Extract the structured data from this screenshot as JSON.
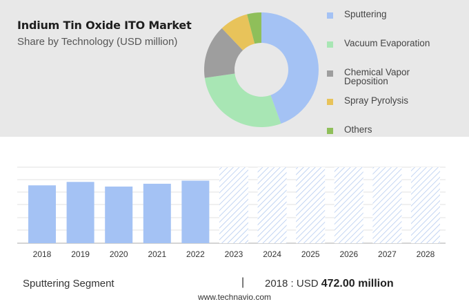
{
  "header": {
    "title": "Indium Tin Oxide ITO Market",
    "subtitle": "Share by Technology (USD million)"
  },
  "colors": {
    "sputtering": "#a4c2f4",
    "vacuum_evaporation": "#a8e6b4",
    "chemical_vapor_deposition": "#9e9e9e",
    "spray_pyrolysis": "#e8c35a",
    "others": "#8fbf5a",
    "bar": "#a4c2f4",
    "forecast_hatch": "#aac4ee"
  },
  "chart_data": [
    {
      "type": "pie",
      "variant": "donut",
      "labels": [
        "Sputtering",
        "Vacuum Evaporation",
        "Chemical Vapor Deposition",
        "Spray Pyrolysis",
        "Others"
      ],
      "values": [
        44,
        28,
        15,
        8,
        4
      ],
      "legend": {
        "placement": "right",
        "items": [
          {
            "label": "Sputtering",
            "color": "#a4c2f4"
          },
          {
            "label": "Vacuum Evaporation",
            "color": "#a8e6b4"
          },
          {
            "label": "Chemical Vapor Deposition",
            "color": "#9e9e9e"
          },
          {
            "label": "Spray Pyrolysis",
            "color": "#e8c35a"
          },
          {
            "label": "Others",
            "color": "#8fbf5a"
          }
        ]
      }
    },
    {
      "type": "bar",
      "categories": [
        "2018",
        "2019",
        "2020",
        "2021",
        "2022",
        "2023",
        "2024",
        "2025",
        "2026",
        "2027",
        "2028"
      ],
      "values": [
        472,
        500,
        462,
        485,
        510,
        null,
        null,
        null,
        null,
        null,
        null
      ],
      "forecast_categories": [
        "2023",
        "2024",
        "2025",
        "2026",
        "2027",
        "2028"
      ],
      "ylim": [
        0,
        620
      ],
      "grid": true
    }
  ],
  "footer": {
    "segment": "Sputtering Segment",
    "divider": "|",
    "year_label": "2018 : USD",
    "amount": "472.00 million",
    "url": "www.technavio.com"
  }
}
